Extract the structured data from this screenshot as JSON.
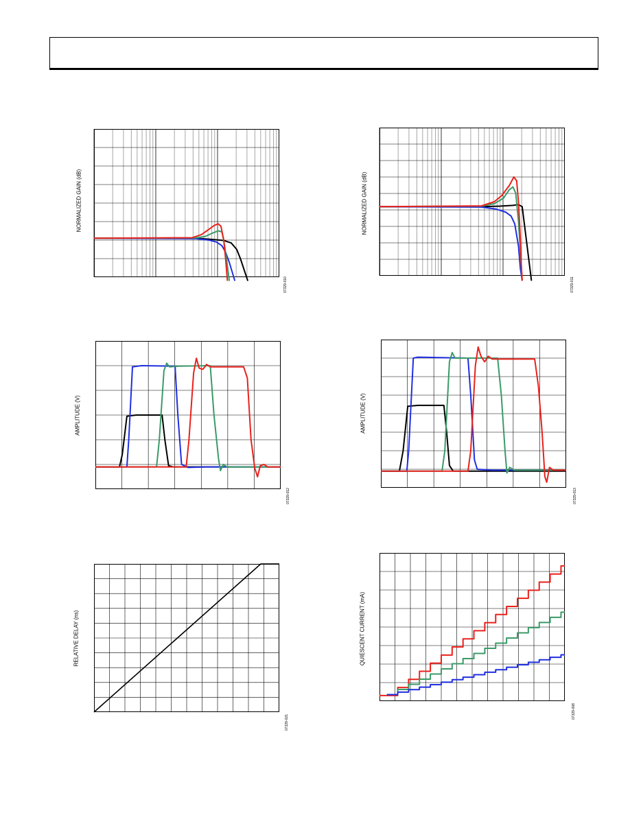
{
  "colors": {
    "black": "#000000",
    "red": "#e8211b",
    "green": "#3a9a68",
    "blue": "#1f2ee0",
    "grid": "#000000"
  },
  "chart_data": [
    {
      "id": "c1",
      "type": "line",
      "ylabel": "NORMALIZED GAIN (dB)",
      "figure_id": "07329-010",
      "xscale": "log",
      "grid": true,
      "series": [
        {
          "color": "black",
          "points": [
            [
              0.0,
              2.1
            ],
            [
              0.55,
              2.1
            ],
            [
              0.62,
              2.05
            ],
            [
              0.7,
              1.98
            ],
            [
              0.74,
              1.85
            ],
            [
              0.77,
              1.5
            ],
            [
              0.79,
              1.0
            ],
            [
              0.81,
              0.4
            ],
            [
              0.83,
              -0.2
            ]
          ]
        },
        {
          "color": "blue",
          "points": [
            [
              0.0,
              2.1
            ],
            [
              0.55,
              2.08
            ],
            [
              0.62,
              2.0
            ],
            [
              0.66,
              1.9
            ],
            [
              0.69,
              1.7
            ],
            [
              0.71,
              1.35
            ],
            [
              0.73,
              0.8
            ],
            [
              0.745,
              0.3
            ],
            [
              0.76,
              -0.2
            ]
          ]
        },
        {
          "color": "green",
          "points": [
            [
              0.0,
              2.1
            ],
            [
              0.55,
              2.12
            ],
            [
              0.6,
              2.2
            ],
            [
              0.64,
              2.38
            ],
            [
              0.67,
              2.5
            ],
            [
              0.69,
              2.45
            ],
            [
              0.7,
              2.0
            ],
            [
              0.715,
              1.0
            ],
            [
              0.73,
              -0.2
            ]
          ]
        },
        {
          "color": "red",
          "points": [
            [
              0.0,
              2.1
            ],
            [
              0.53,
              2.13
            ],
            [
              0.58,
              2.3
            ],
            [
              0.62,
              2.58
            ],
            [
              0.65,
              2.8
            ],
            [
              0.67,
              2.88
            ],
            [
              0.685,
              2.75
            ],
            [
              0.7,
              2.0
            ],
            [
              0.71,
              1.0
            ],
            [
              0.72,
              -0.2
            ]
          ]
        }
      ]
    },
    {
      "id": "c2",
      "type": "line",
      "ylabel": "NORMALIZED GAIN (dB)",
      "figure_id": "07329-011",
      "xscale": "log",
      "grid": true,
      "series": [
        {
          "color": "black",
          "points": [
            [
              0.0,
              2.8
            ],
            [
              0.55,
              2.8
            ],
            [
              0.65,
              2.82
            ],
            [
              0.72,
              2.85
            ],
            [
              0.75,
              2.88
            ],
            [
              0.77,
              2.8
            ],
            [
              0.78,
              2.2
            ],
            [
              0.8,
              1.0
            ],
            [
              0.82,
              -0.2
            ]
          ]
        },
        {
          "color": "blue",
          "points": [
            [
              0.0,
              2.8
            ],
            [
              0.55,
              2.78
            ],
            [
              0.63,
              2.7
            ],
            [
              0.68,
              2.58
            ],
            [
              0.71,
              2.42
            ],
            [
              0.73,
              2.1
            ],
            [
              0.75,
              1.2
            ],
            [
              0.76,
              0.3
            ],
            [
              0.77,
              -0.2
            ]
          ]
        },
        {
          "color": "green",
          "points": [
            [
              0.0,
              2.8
            ],
            [
              0.55,
              2.82
            ],
            [
              0.62,
              2.92
            ],
            [
              0.67,
              3.15
            ],
            [
              0.7,
              3.48
            ],
            [
              0.72,
              3.6
            ],
            [
              0.735,
              3.35
            ],
            [
              0.75,
              2.2
            ],
            [
              0.76,
              1.0
            ],
            [
              0.77,
              -0.2
            ]
          ]
        },
        {
          "color": "red",
          "points": [
            [
              0.0,
              2.8
            ],
            [
              0.55,
              2.83
            ],
            [
              0.62,
              3.0
            ],
            [
              0.66,
              3.25
            ],
            [
              0.7,
              3.65
            ],
            [
              0.725,
              4.0
            ],
            [
              0.74,
              3.85
            ],
            [
              0.75,
              3.0
            ],
            [
              0.76,
              1.5
            ],
            [
              0.765,
              0.5
            ],
            [
              0.77,
              -0.2
            ]
          ]
        }
      ]
    },
    {
      "id": "c3",
      "type": "line",
      "ylabel": "AMPLITUDE (V)",
      "figure_id": "07329-012",
      "grid": true,
      "series": [
        {
          "color": "black",
          "points": [
            [
              0.0,
              0.9
            ],
            [
              0.13,
              0.9
            ],
            [
              0.145,
              1.4
            ],
            [
              0.17,
              2.95
            ],
            [
              0.22,
              3.0
            ],
            [
              0.36,
              3.0
            ],
            [
              0.375,
              2.0
            ],
            [
              0.395,
              0.95
            ],
            [
              0.42,
              0.9
            ],
            [
              1.0,
              0.9
            ]
          ]
        },
        {
          "color": "blue",
          "points": [
            [
              0.0,
              0.9
            ],
            [
              0.17,
              0.9
            ],
            [
              0.18,
              2.0
            ],
            [
              0.2,
              4.95
            ],
            [
              0.25,
              5.0
            ],
            [
              0.43,
              4.98
            ],
            [
              0.445,
              3.0
            ],
            [
              0.465,
              1.0
            ],
            [
              0.5,
              0.88
            ],
            [
              0.6,
              0.9
            ],
            [
              1.0,
              0.9
            ]
          ]
        },
        {
          "color": "green",
          "points": [
            [
              0.0,
              0.9
            ],
            [
              0.33,
              0.9
            ],
            [
              0.345,
              2.0
            ],
            [
              0.37,
              4.8
            ],
            [
              0.385,
              5.1
            ],
            [
              0.4,
              4.95
            ],
            [
              0.45,
              4.98
            ],
            [
              0.62,
              5.0
            ],
            [
              0.64,
              3.0
            ],
            [
              0.665,
              1.2
            ],
            [
              0.675,
              0.75
            ],
            [
              0.69,
              1.0
            ],
            [
              0.71,
              0.9
            ],
            [
              1.0,
              0.9
            ]
          ]
        },
        {
          "color": "red",
          "points": [
            [
              0.0,
              0.9
            ],
            [
              0.49,
              0.9
            ],
            [
              0.505,
              2.0
            ],
            [
              0.53,
              4.7
            ],
            [
              0.545,
              5.3
            ],
            [
              0.56,
              4.9
            ],
            [
              0.58,
              4.85
            ],
            [
              0.6,
              5.05
            ],
            [
              0.62,
              4.95
            ],
            [
              0.8,
              4.95
            ],
            [
              0.82,
              4.5
            ],
            [
              0.84,
              2.0
            ],
            [
              0.86,
              0.85
            ],
            [
              0.875,
              0.5
            ],
            [
              0.89,
              0.95
            ],
            [
              0.91,
              1.0
            ],
            [
              0.93,
              0.9
            ],
            [
              1.0,
              0.9
            ]
          ]
        }
      ]
    },
    {
      "id": "c4",
      "type": "line",
      "ylabel": "AMPLITUDE (V)",
      "figure_id": "07329-013",
      "grid": true,
      "series": [
        {
          "color": "black",
          "points": [
            [
              0.0,
              0.9
            ],
            [
              0.1,
              0.9
            ],
            [
              0.12,
              2.0
            ],
            [
              0.145,
              4.4
            ],
            [
              0.2,
              4.45
            ],
            [
              0.34,
              4.45
            ],
            [
              0.355,
              3.0
            ],
            [
              0.37,
              1.2
            ],
            [
              0.39,
              0.9
            ],
            [
              1.0,
              0.9
            ]
          ]
        },
        {
          "color": "blue",
          "points": [
            [
              0.0,
              0.9
            ],
            [
              0.14,
              0.9
            ],
            [
              0.15,
              2.0
            ],
            [
              0.175,
              7.0
            ],
            [
              0.2,
              7.05
            ],
            [
              0.47,
              7.0
            ],
            [
              0.485,
              5.0
            ],
            [
              0.505,
              1.5
            ],
            [
              0.52,
              1.0
            ],
            [
              0.6,
              0.95
            ],
            [
              1.0,
              0.95
            ]
          ]
        },
        {
          "color": "green",
          "points": [
            [
              0.0,
              0.9
            ],
            [
              0.33,
              0.9
            ],
            [
              0.345,
              2.0
            ],
            [
              0.37,
              6.8
            ],
            [
              0.385,
              7.3
            ],
            [
              0.4,
              7.0
            ],
            [
              0.44,
              7.0
            ],
            [
              0.63,
              7.0
            ],
            [
              0.65,
              5.0
            ],
            [
              0.67,
              2.0
            ],
            [
              0.68,
              0.8
            ],
            [
              0.695,
              1.1
            ],
            [
              0.72,
              0.95
            ],
            [
              1.0,
              0.95
            ]
          ]
        },
        {
          "color": "red",
          "points": [
            [
              0.0,
              0.9
            ],
            [
              0.47,
              0.9
            ],
            [
              0.485,
              2.0
            ],
            [
              0.51,
              6.6
            ],
            [
              0.525,
              7.6
            ],
            [
              0.54,
              7.1
            ],
            [
              0.56,
              6.8
            ],
            [
              0.58,
              7.1
            ],
            [
              0.6,
              6.95
            ],
            [
              0.83,
              6.95
            ],
            [
              0.85,
              5.5
            ],
            [
              0.87,
              3.0
            ],
            [
              0.885,
              0.6
            ],
            [
              0.895,
              0.3
            ],
            [
              0.91,
              1.1
            ],
            [
              0.93,
              0.95
            ],
            [
              1.0,
              0.95
            ]
          ]
        }
      ]
    },
    {
      "id": "c5",
      "type": "line",
      "ylabel": "RELATIVE DELAY (ns)",
      "figure_id": "07329-021",
      "grid": true,
      "steps": 60,
      "series": [
        {
          "color": "black",
          "points": [
            [
              0.0,
              0.0
            ],
            [
              0.9,
              10.0
            ],
            [
              1.0,
              10.0
            ]
          ]
        }
      ]
    },
    {
      "id": "c6",
      "type": "line",
      "ylabel": "QUIESCENT CURRENT (mA)",
      "figure_id": "07329-008",
      "grid": true,
      "steps": 16,
      "series": [
        {
          "color": "red",
          "points": [
            [
              0.0,
              0.3
            ],
            [
              0.06,
              0.3
            ],
            [
              1.0,
              7.3
            ]
          ]
        },
        {
          "color": "green",
          "points": [
            [
              0.04,
              0.35
            ],
            [
              0.06,
              0.35
            ],
            [
              1.0,
              4.8
            ]
          ]
        },
        {
          "color": "blue",
          "points": [
            [
              0.04,
              0.35
            ],
            [
              0.06,
              0.35
            ],
            [
              1.0,
              2.5
            ]
          ]
        }
      ]
    }
  ]
}
